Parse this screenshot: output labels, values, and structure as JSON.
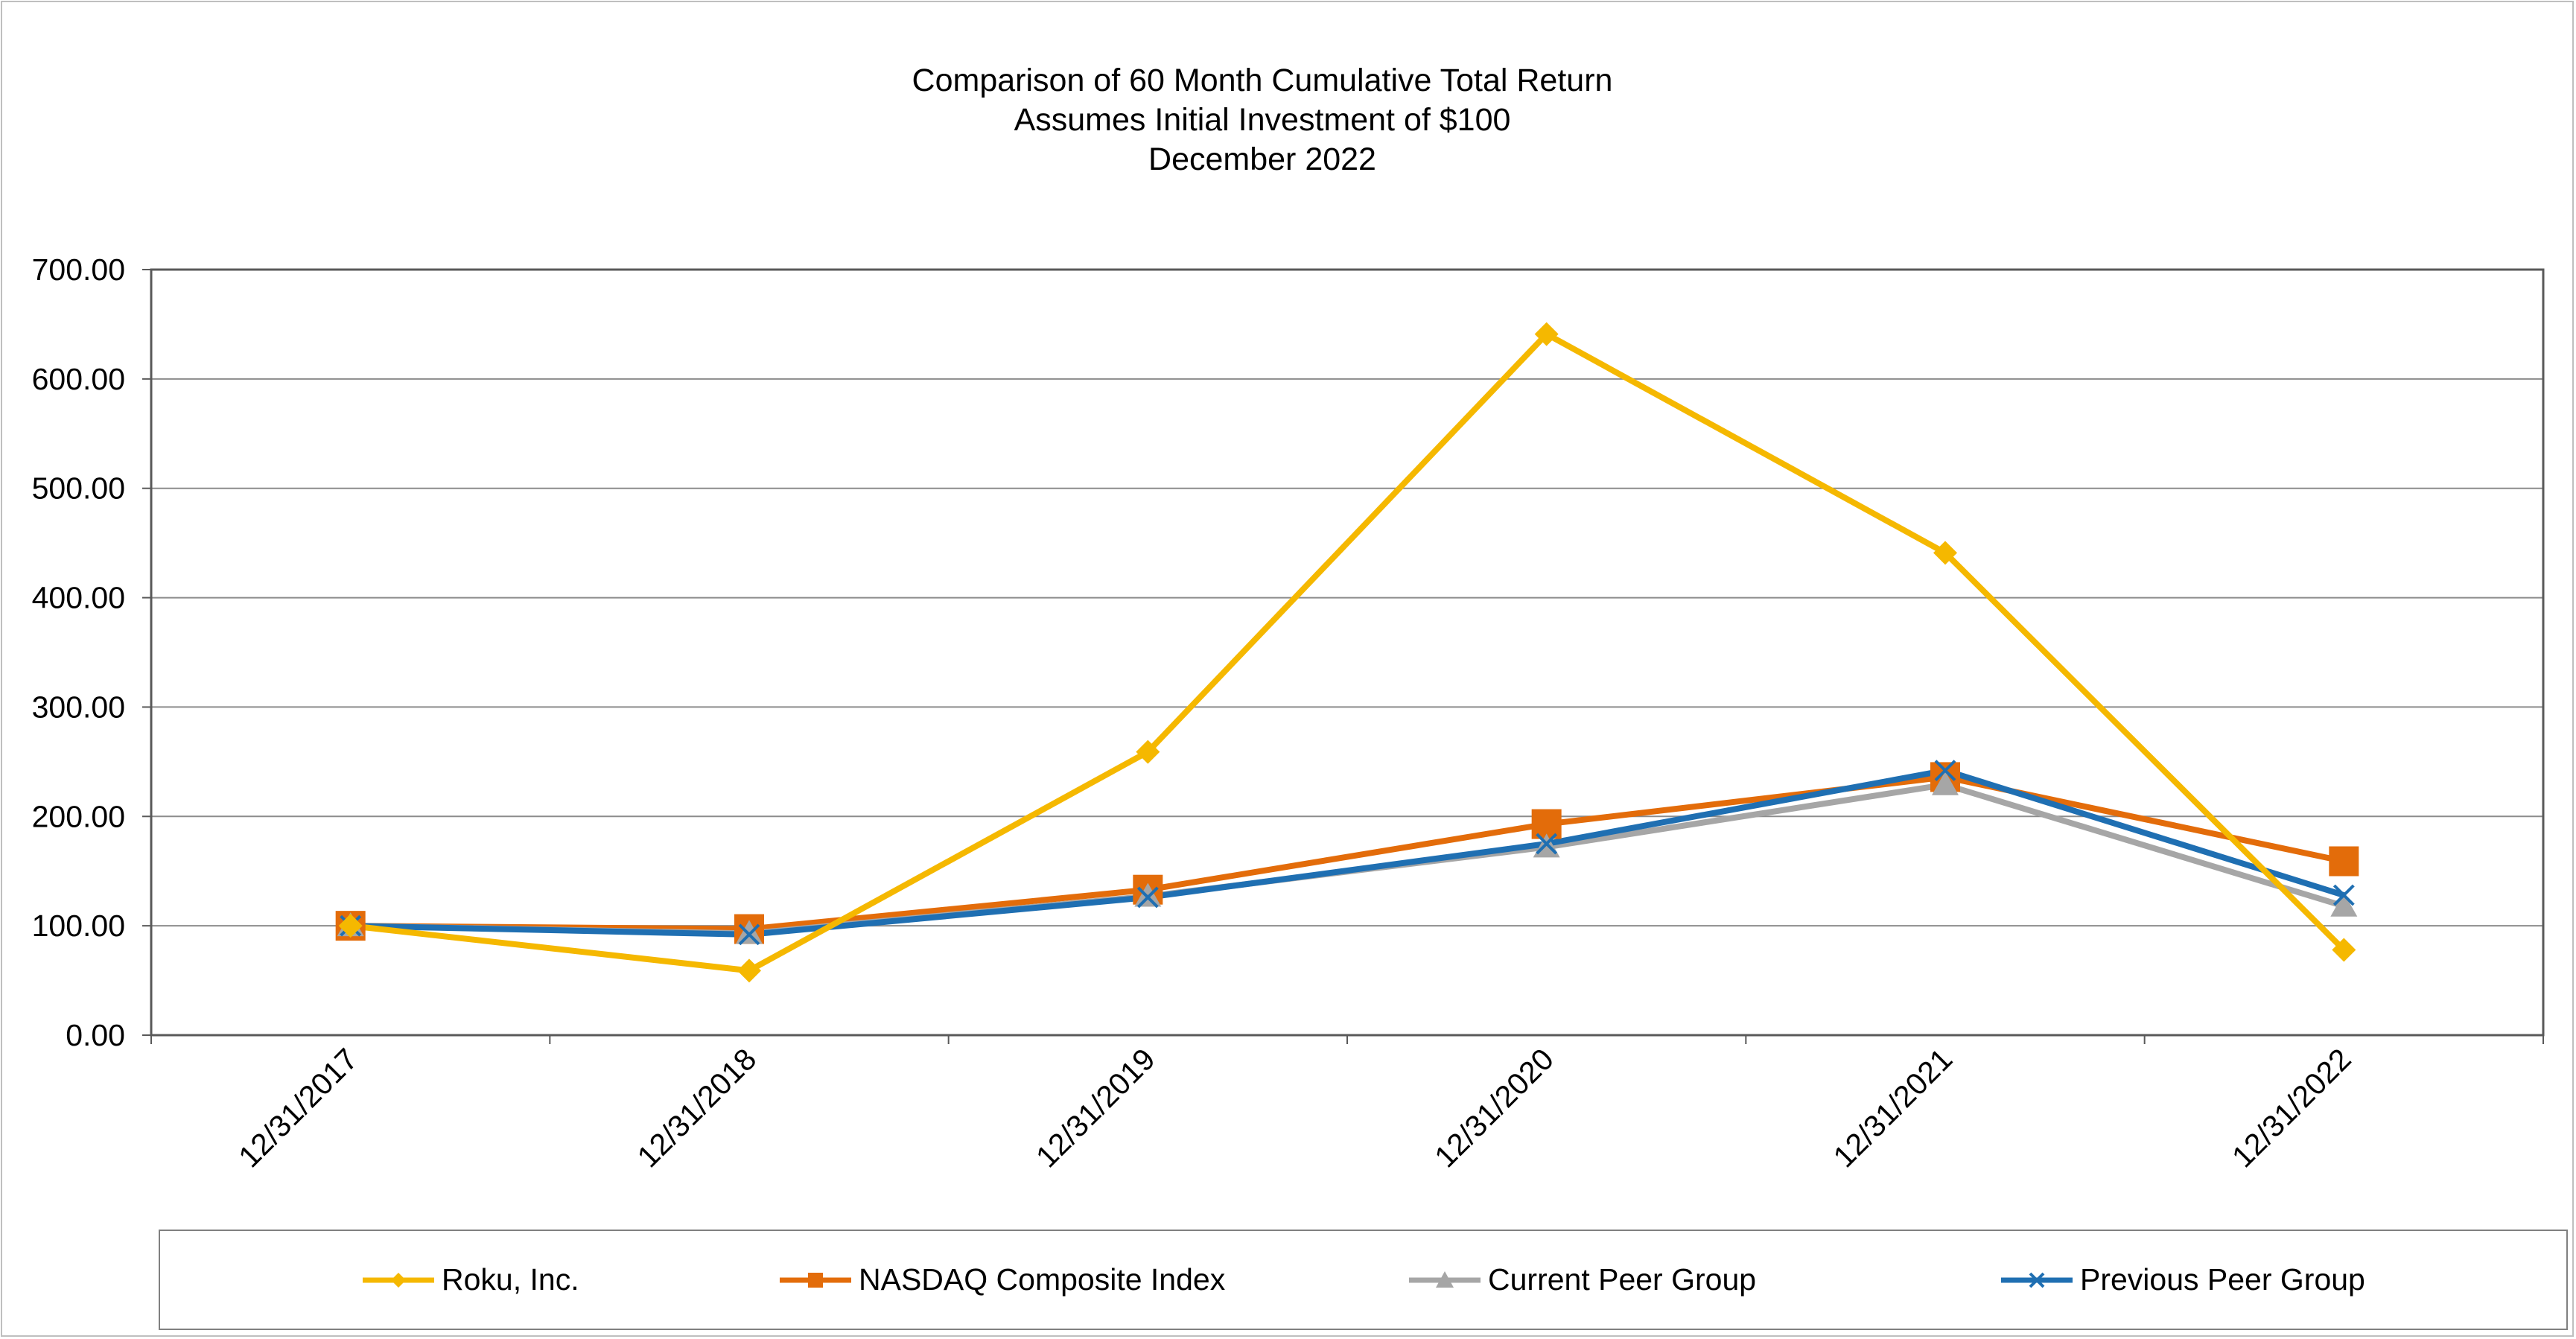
{
  "chart_data": {
    "type": "line",
    "title": "Comparison of 60 Month Cumulative Total Return",
    "subtitle_1": "Assumes Initial Investment of $100",
    "subtitle_2": "December 2022",
    "categories": [
      "12/31/2017",
      "12/31/2018",
      "12/31/2019",
      "12/31/2020",
      "12/31/2021",
      "12/31/2022"
    ],
    "y_ticks": [
      "0.00",
      "100.00",
      "200.00",
      "300.00",
      "400.00",
      "500.00",
      "600.00",
      "700.00"
    ],
    "ylim": [
      0,
      700
    ],
    "grid": true,
    "legend_position": "bottom",
    "series": [
      {
        "name": "Roku, Inc.",
        "color": "#f5b800",
        "marker": "diamond",
        "values": [
          100,
          59,
          259,
          641,
          441,
          78
        ]
      },
      {
        "name": "NASDAQ Composite Index",
        "color": "#e36c0a",
        "marker": "square",
        "values": [
          100,
          97,
          133,
          193,
          236,
          159
        ]
      },
      {
        "name": "Current Peer Group",
        "color": "#a6a6a6",
        "marker": "triangle",
        "values": [
          100,
          93,
          127,
          172,
          229,
          118
        ]
      },
      {
        "name": "Previous Peer Group",
        "color": "#1f6fb2",
        "marker": "x",
        "values": [
          100,
          92,
          126,
          175,
          242,
          128
        ]
      }
    ]
  }
}
